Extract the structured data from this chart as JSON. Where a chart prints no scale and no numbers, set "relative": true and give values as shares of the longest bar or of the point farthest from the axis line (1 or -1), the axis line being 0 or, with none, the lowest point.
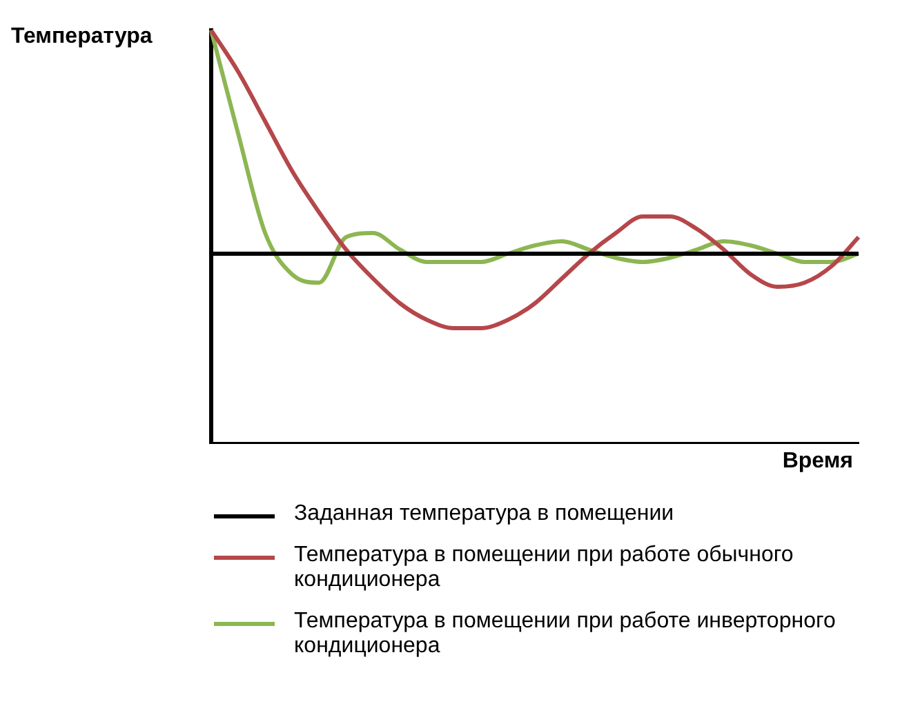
{
  "chart_data": {
    "type": "line",
    "relative": true,
    "xlabel": "Время",
    "ylabel": "Температура",
    "legend": "bottom",
    "grid": false,
    "marker": "none",
    "line_style": "solid",
    "categories": [
      null,
      null,
      null,
      null,
      null,
      null,
      null,
      null,
      null,
      null,
      null,
      null,
      null,
      null,
      null,
      null,
      null,
      null,
      null,
      null,
      null,
      null,
      null,
      null,
      null
    ],
    "series": [
      {
        "name": "Заданная температура в помещении",
        "color": "#000000",
        "values": [
          0.46,
          0.46,
          0.46,
          0.46,
          0.46,
          0.46,
          0.46,
          0.46,
          0.46,
          0.46,
          0.46,
          0.46,
          0.46,
          0.46,
          0.46,
          0.46,
          0.46,
          0.46,
          0.46,
          0.46,
          0.46,
          0.46,
          0.46,
          0.46,
          0.46
        ]
      },
      {
        "name": "Температура в помещении при работе обычного кондиционера",
        "color": "#b5474a",
        "values": [
          1.0,
          0.9,
          0.78,
          0.66,
          0.56,
          0.47,
          0.4,
          0.34,
          0.3,
          0.28,
          0.28,
          0.3,
          0.34,
          0.4,
          0.46,
          0.51,
          0.55,
          0.55,
          0.52,
          0.47,
          0.41,
          0.38,
          0.39,
          0.43,
          0.5
        ]
      },
      {
        "name": "Температура в помещении при работе инверторного кондиционера",
        "color": "#8db653",
        "values": [
          1.0,
          0.75,
          0.51,
          0.41,
          0.39,
          0.5,
          0.51,
          0.47,
          0.44,
          0.44,
          0.44,
          0.46,
          0.48,
          0.49,
          0.47,
          0.45,
          0.44,
          0.45,
          0.47,
          0.49,
          0.48,
          0.46,
          0.44,
          0.44,
          0.46
        ]
      }
    ]
  }
}
